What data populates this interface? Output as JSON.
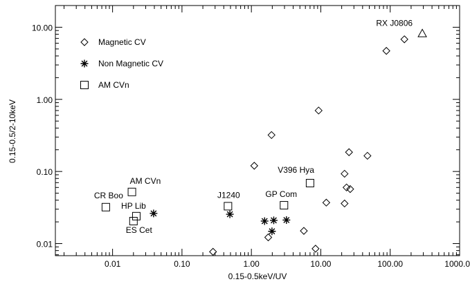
{
  "chart_data": {
    "type": "scatter",
    "title": "",
    "xlabel": "0.15-0.5keV/UV",
    "ylabel": "0.15-0.5/2-10keV",
    "xscale": "log",
    "yscale": "log",
    "xlim": [
      0.0015,
      1000
    ],
    "ylim": [
      0.0068,
      20
    ],
    "grid": false,
    "legend_position": "top-left",
    "x_ticks": [
      {
        "value": 0.01,
        "label": "0.01"
      },
      {
        "value": 0.1,
        "label": "0.10"
      },
      {
        "value": 1,
        "label": "1.00"
      },
      {
        "value": 10,
        "label": "10.00"
      },
      {
        "value": 100,
        "label": "100.00"
      },
      {
        "value": 1000,
        "label": "1000.00"
      }
    ],
    "y_ticks": [
      {
        "value": 0.01,
        "label": "0.01"
      },
      {
        "value": 0.1,
        "label": "0.10"
      },
      {
        "value": 1,
        "label": "1.00"
      },
      {
        "value": 10,
        "label": "10.00"
      }
    ],
    "series": [
      {
        "name": "Magnetic CV",
        "marker": "diamond",
        "points": [
          {
            "x": 0.28,
            "y": 0.0077
          },
          {
            "x": 1.1,
            "y": 0.12
          },
          {
            "x": 1.75,
            "y": 0.0122
          },
          {
            "x": 1.95,
            "y": 0.32
          },
          {
            "x": 5.7,
            "y": 0.015
          },
          {
            "x": 8.4,
            "y": 0.0085
          },
          {
            "x": 9.3,
            "y": 0.7
          },
          {
            "x": 12.0,
            "y": 0.037
          },
          {
            "x": 22.0,
            "y": 0.093
          },
          {
            "x": 22.0,
            "y": 0.036
          },
          {
            "x": 23.5,
            "y": 0.06
          },
          {
            "x": 25.5,
            "y": 0.185
          },
          {
            "x": 26.5,
            "y": 0.057
          },
          {
            "x": 47.0,
            "y": 0.165
          },
          {
            "x": 88.0,
            "y": 4.7
          },
          {
            "x": 160.0,
            "y": 6.8
          }
        ]
      },
      {
        "name": "Non Magnetic CV",
        "marker": "asterisk",
        "points": [
          {
            "x": 0.039,
            "y": 0.0262
          },
          {
            "x": 0.49,
            "y": 0.0255
          },
          {
            "x": 1.55,
            "y": 0.0205
          },
          {
            "x": 1.98,
            "y": 0.0148
          },
          {
            "x": 2.1,
            "y": 0.021
          },
          {
            "x": 3.2,
            "y": 0.0212
          }
        ]
      },
      {
        "name": "AM CVn",
        "marker": "square",
        "points": [
          {
            "x": 0.008,
            "y": 0.032
          },
          {
            "x": 0.019,
            "y": 0.052
          },
          {
            "x": 0.02,
            "y": 0.0205
          },
          {
            "x": 0.022,
            "y": 0.024
          },
          {
            "x": 0.46,
            "y": 0.033
          },
          {
            "x": 2.95,
            "y": 0.034
          },
          {
            "x": 7.0,
            "y": 0.069
          }
        ]
      },
      {
        "name": "",
        "marker": "triangle",
        "points": [
          {
            "x": 290.0,
            "y": 8.2
          }
        ]
      }
    ],
    "annotations": [
      {
        "text": "RX J0806",
        "x": 290.0,
        "y": 8.2,
        "anchor": "end",
        "dx": -14,
        "dy": -11
      },
      {
        "text": "AM CVn",
        "x": 0.019,
        "y": 0.052,
        "anchor": "start",
        "dx": -3,
        "dy": -12
      },
      {
        "text": "CR Boo",
        "x": 0.008,
        "y": 0.032,
        "anchor": "middle",
        "dx": 4,
        "dy": -13
      },
      {
        "text": "HP Lib",
        "x": 0.022,
        "y": 0.024,
        "anchor": "middle",
        "dx": -4,
        "dy": -11
      },
      {
        "text": "ES Cet",
        "x": 0.02,
        "y": 0.0205,
        "anchor": "middle",
        "dx": 8,
        "dy": 17
      },
      {
        "text": "J1240",
        "x": 0.46,
        "y": 0.033,
        "anchor": "middle",
        "dx": 1,
        "dy": -12
      },
      {
        "text": "GP Com",
        "x": 2.95,
        "y": 0.034,
        "anchor": "middle",
        "dx": -4,
        "dy": -12
      },
      {
        "text": "V396 Hya",
        "x": 7.0,
        "y": 0.069,
        "anchor": "end",
        "dx": 6,
        "dy": -15
      }
    ]
  }
}
